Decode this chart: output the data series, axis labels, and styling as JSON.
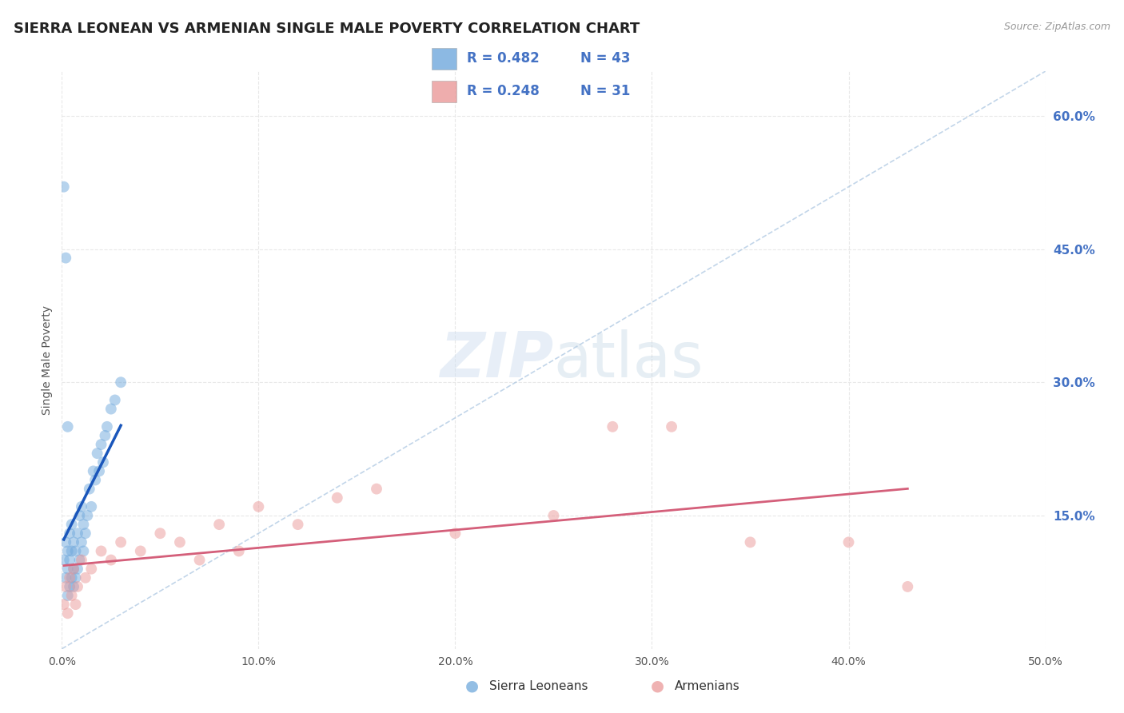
{
  "title": "SIERRA LEONEAN VS ARMENIAN SINGLE MALE POVERTY CORRELATION CHART",
  "source": "Source: ZipAtlas.com",
  "ylabel": "Single Male Poverty",
  "xlim": [
    0.0,
    0.5
  ],
  "ylim": [
    0.0,
    0.65
  ],
  "xticks": [
    0.0,
    0.1,
    0.2,
    0.3,
    0.4,
    0.5
  ],
  "xtick_labels": [
    "0.0%",
    "10.0%",
    "20.0%",
    "30.0%",
    "40.0%",
    "50.0%"
  ],
  "ytick_right": [
    0.15,
    0.3,
    0.45,
    0.6
  ],
  "ytick_right_labels": [
    "15.0%",
    "30.0%",
    "45.0%",
    "60.0%"
  ],
  "sierra_color": "#6fa8dc",
  "armenian_color": "#ea9999",
  "sierra_R": 0.482,
  "sierra_N": 43,
  "armenian_R": 0.248,
  "armenian_N": 31,
  "sierra_x": [
    0.001,
    0.002,
    0.002,
    0.003,
    0.003,
    0.003,
    0.004,
    0.004,
    0.004,
    0.005,
    0.005,
    0.005,
    0.006,
    0.006,
    0.006,
    0.007,
    0.007,
    0.008,
    0.008,
    0.009,
    0.009,
    0.01,
    0.01,
    0.011,
    0.011,
    0.012,
    0.013,
    0.014,
    0.015,
    0.016,
    0.017,
    0.018,
    0.019,
    0.02,
    0.021,
    0.022,
    0.023,
    0.025,
    0.027,
    0.03,
    0.002,
    0.001,
    0.003
  ],
  "sierra_y": [
    0.1,
    0.08,
    0.12,
    0.06,
    0.09,
    0.11,
    0.07,
    0.1,
    0.13,
    0.08,
    0.11,
    0.14,
    0.07,
    0.09,
    0.12,
    0.08,
    0.11,
    0.09,
    0.13,
    0.1,
    0.15,
    0.12,
    0.16,
    0.11,
    0.14,
    0.13,
    0.15,
    0.18,
    0.16,
    0.2,
    0.19,
    0.22,
    0.2,
    0.23,
    0.21,
    0.24,
    0.25,
    0.27,
    0.28,
    0.3,
    0.44,
    0.52,
    0.25
  ],
  "armenian_x": [
    0.001,
    0.002,
    0.003,
    0.004,
    0.005,
    0.006,
    0.007,
    0.008,
    0.01,
    0.012,
    0.015,
    0.02,
    0.025,
    0.03,
    0.04,
    0.05,
    0.06,
    0.07,
    0.08,
    0.09,
    0.1,
    0.12,
    0.14,
    0.16,
    0.2,
    0.25,
    0.28,
    0.31,
    0.35,
    0.4,
    0.43
  ],
  "armenian_y": [
    0.05,
    0.07,
    0.04,
    0.08,
    0.06,
    0.09,
    0.05,
    0.07,
    0.1,
    0.08,
    0.09,
    0.11,
    0.1,
    0.12,
    0.11,
    0.13,
    0.12,
    0.1,
    0.14,
    0.11,
    0.16,
    0.14,
    0.17,
    0.18,
    0.13,
    0.15,
    0.25,
    0.25,
    0.12,
    0.12,
    0.07
  ],
  "background_color": "#ffffff",
  "grid_color": "#e8e8e8",
  "title_fontsize": 13,
  "label_fontsize": 10,
  "tick_fontsize": 10,
  "dot_size": 100,
  "dot_alpha": 0.5,
  "line_ref_color": "#a8c4e0",
  "sierra_line_color": "#1a56bb",
  "armenian_line_color": "#d45f7a",
  "watermark_color": "#d0dff0",
  "watermark_alpha": 0.5
}
